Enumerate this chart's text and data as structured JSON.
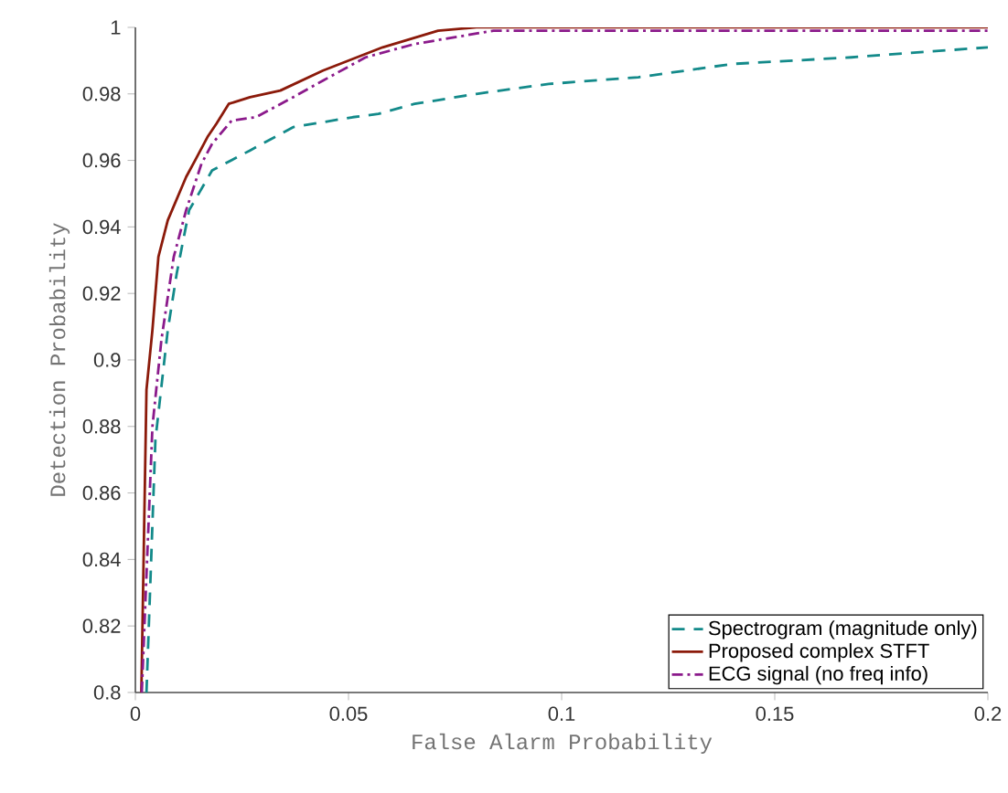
{
  "chart_data": {
    "type": "line",
    "xlabel": "False Alarm Probability",
    "ylabel": "Detection Probability",
    "xlim": [
      0,
      0.2
    ],
    "ylim": [
      0.8,
      1
    ],
    "xticks": [
      0,
      0.05,
      0.1,
      0.15,
      0.2
    ],
    "yticks": [
      0.8,
      0.82,
      0.84,
      0.86,
      0.88,
      0.9,
      0.92,
      0.94,
      0.96,
      0.98,
      1
    ],
    "legend": "bottom right",
    "grid": false,
    "series": [
      {
        "name": "Spectrogram (magnitude only)",
        "color": "#138a8a",
        "line_style": "dashed",
        "x": [
          0.0026,
          0.0047,
          0.0076,
          0.0097,
          0.0126,
          0.018,
          0.0269,
          0.037,
          0.051,
          0.057,
          0.0655,
          0.08,
          0.097,
          0.118,
          0.14,
          0.168,
          0.2
        ],
        "values": [
          0.8,
          0.876,
          0.909,
          0.926,
          0.945,
          0.957,
          0.963,
          0.97,
          0.973,
          0.974,
          0.977,
          0.98,
          0.983,
          0.985,
          0.989,
          0.991,
          0.994
        ]
      },
      {
        "name": "Proposed complex STFT",
        "color": "#8b1a0a",
        "line_style": "solid",
        "x": [
          0.0014,
          0.0026,
          0.004,
          0.0054,
          0.0076,
          0.0119,
          0.014,
          0.0169,
          0.019,
          0.0219,
          0.0269,
          0.034,
          0.044,
          0.058,
          0.071,
          0.08,
          0.2
        ],
        "values": [
          0.8,
          0.891,
          0.909,
          0.931,
          0.942,
          0.955,
          0.96,
          0.967,
          0.971,
          0.977,
          0.979,
          0.981,
          0.987,
          0.994,
          0.999,
          1,
          1
        ]
      },
      {
        "name": "ECG signal (no freq info)",
        "color": "#8b1a8b",
        "line_style": "dashdotted",
        "x": [
          0.0015,
          0.004,
          0.0061,
          0.009,
          0.0119,
          0.0155,
          0.018,
          0.0226,
          0.0283,
          0.037,
          0.044,
          0.054,
          0.0655,
          0.084,
          0.2
        ],
        "values": [
          0.8,
          0.88,
          0.906,
          0.931,
          0.945,
          0.959,
          0.965,
          0.972,
          0.973,
          0.979,
          0.984,
          0.991,
          0.995,
          0.999,
          0.999
        ]
      }
    ]
  }
}
